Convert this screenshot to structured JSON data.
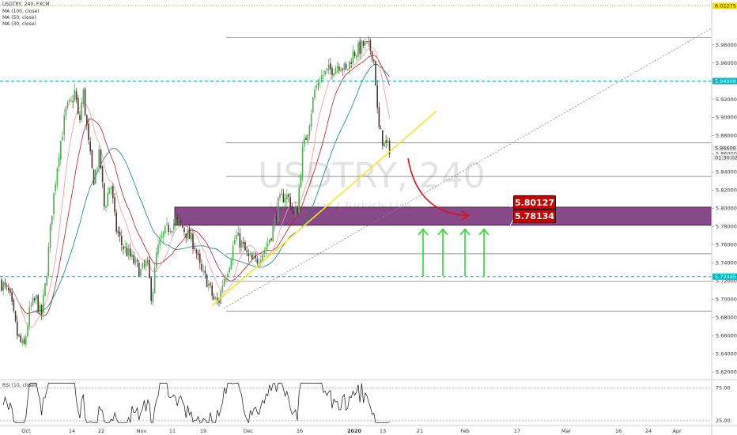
{
  "header": {
    "symbol_line": "USDTRY, 240, FXCM",
    "ma_lines": [
      "MA (100, close)",
      "MA (50, close)",
      "MA (30, close)"
    ],
    "rsi_label": "RSI (10, close)"
  },
  "watermark": {
    "symbol": "USDTRY, 240",
    "description": "U.S. Dollar / Turkish Lira"
  },
  "colors": {
    "up_candle": "#4caf50",
    "down_candle": "#4e342e",
    "trendline": "#f2ea20",
    "zone_fill": "#6a1b6a",
    "zone_border": "#2b0b2b",
    "dashed_level": "#00b8c4",
    "yellow_dotted": "#e0c300",
    "label_red": "#c80000",
    "arrow_green": "#28e028",
    "arrow_red": "#e01010",
    "ma100": "#00897b",
    "ma50": "#b71c1c",
    "ma30": "#ef9a9a"
  },
  "chart_data": {
    "type": "candlestick",
    "title": "USDTRY, 240, FXCM",
    "y_axis": {
      "range": [
        5.615,
        6.0275
      ],
      "ticks": [
        "5.98000",
        "5.96000",
        "5.94000",
        "5.92000",
        "5.90000",
        "5.88000",
        "5.86000",
        "5.84000",
        "5.82000",
        "5.80000",
        "5.78000",
        "5.76000",
        "5.74000",
        "5.72000",
        "5.70000",
        "5.68000",
        "5.66000",
        "5.64000",
        "5.62000"
      ],
      "price_labels": [
        {
          "text": "6.02275",
          "value": 6.02275,
          "style": "yellow"
        },
        {
          "text": "5.94000",
          "value": 5.94,
          "style": "teal"
        },
        {
          "text": "5.86606",
          "value": 5.86606,
          "style": "gray"
        },
        {
          "text": "01:30:02",
          "value": 5.856,
          "style": "gray"
        },
        {
          "text": "5.72485",
          "value": 5.72485,
          "style": "teal"
        }
      ]
    },
    "x_axis": {
      "ticks": [
        "Oct",
        "14",
        "22",
        "Nov",
        "11",
        "19",
        "Dec",
        "16",
        "2020",
        "13",
        "21",
        "Feb",
        "17",
        "Mar",
        "16",
        "24",
        "Apr"
      ]
    },
    "horizontal_levels": [
      {
        "value": 6.02275,
        "style": "yellow-dotted"
      },
      {
        "value": 5.94,
        "style": "teal-dashed"
      },
      {
        "value": 5.72485,
        "style": "teal-dashed"
      },
      {
        "value": 5.988,
        "style": "gray-segment"
      },
      {
        "value": 5.872,
        "style": "gray-segment"
      },
      {
        "value": 5.835,
        "style": "gray-segment"
      },
      {
        "value": 5.75,
        "style": "gray-segment"
      },
      {
        "value": 5.72,
        "style": "gray-segment"
      },
      {
        "value": 5.687,
        "style": "gray-segment"
      }
    ],
    "zone": {
      "upper": 5.80127,
      "lower": 5.78134
    },
    "annotations": [
      {
        "text": "5.80127",
        "value": 5.80127
      },
      {
        "text": "5.78134",
        "value": 5.78134
      }
    ],
    "rsi": {
      "range": [
        20,
        85
      ],
      "ticks": [
        "75.00",
        "25.00"
      ],
      "levels": [
        75,
        25
      ]
    }
  }
}
